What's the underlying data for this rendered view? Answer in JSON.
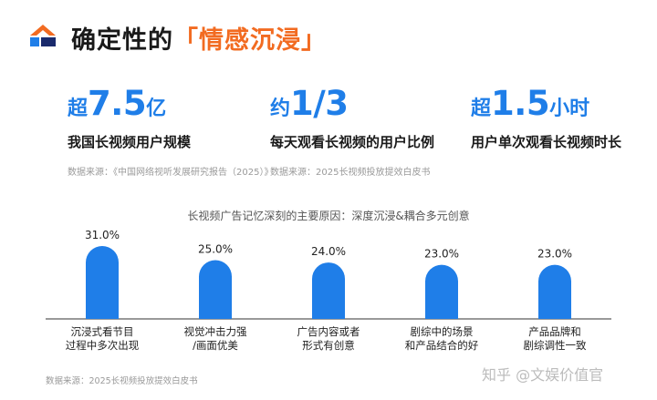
{
  "header": {
    "title_plain": "确定性的",
    "title_highlight": "「情感沉浸」"
  },
  "stats": [
    {
      "prefix": "超",
      "number": "7.5",
      "suffix": "亿",
      "desc": "我国长视频用户规模",
      "source": "数据来源：《中国网络视听发展研究报告（2025）》"
    },
    {
      "prefix": "约",
      "number": "1/3",
      "suffix": "",
      "desc": "每天观看长视频的用户比例",
      "source": "数据来源：2025长视频投放提效白皮书"
    },
    {
      "prefix": "超",
      "number": "1.5",
      "suffix": "小时",
      "desc": "用户单次观看长视频时长",
      "source": ""
    }
  ],
  "chart_data": {
    "type": "bar",
    "title": "长视频广告记忆深刻的主要原因：深度沉浸&耦合多元创意",
    "categories": [
      "沉浸式看节目\n过程中多次出现",
      "视觉冲击力强\n/画面优美",
      "广告内容或者\n形式有创意",
      "剧综中的场景\n和产品结合的好",
      "产品品牌和\n剧综调性一致"
    ],
    "values": [
      31.0,
      25.0,
      24.0,
      23.0,
      23.0
    ],
    "value_labels": [
      "31.0%",
      "25.0%",
      "24.0%",
      "23.0%",
      "23.0%"
    ],
    "ylim": [
      0,
      31
    ],
    "grid": false,
    "bar_color": "#1f7ee8"
  },
  "footer": {
    "source": "数据来源：2025长视频投放提效白皮书",
    "watermark": "知乎 @文娱价值官"
  }
}
